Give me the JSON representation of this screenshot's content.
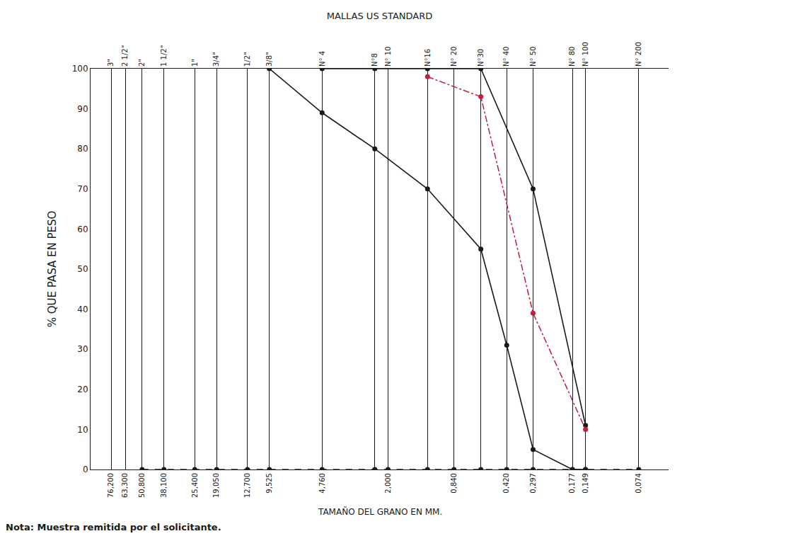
{
  "chart_data": {
    "type": "line",
    "title": "MALLAS US STANDARD",
    "x_label": "TAMAÑO DEL GRANO EN MM.",
    "y_label": "% QUE PASA EN PESO",
    "note": "Nota: Muestra remitida por el solicitante.",
    "log": "x",
    "grid": true,
    "xlim": [
      100,
      0.05
    ],
    "xticks": [
      {
        "value": 76.2,
        "label": "76,200"
      },
      {
        "value": 63.3,
        "label": "63,300"
      },
      {
        "value": 50.8,
        "label": "50,800"
      },
      {
        "value": 38.1,
        "label": "38,100"
      },
      {
        "value": 25.4,
        "label": "25,400"
      },
      {
        "value": 19.05,
        "label": "19,050"
      },
      {
        "value": 12.7,
        "label": "12,700"
      },
      {
        "value": 9.525,
        "label": "9,525"
      },
      {
        "value": 4.76,
        "label": "4,760"
      },
      {
        "value": 2.0,
        "label": "2,000"
      },
      {
        "value": 0.84,
        "label": "0,840"
      },
      {
        "value": 0.42,
        "label": "0,420"
      },
      {
        "value": 0.297,
        "label": "0,297"
      },
      {
        "value": 0.177,
        "label": "0,177"
      },
      {
        "value": 0.149,
        "label": "0,149"
      },
      {
        "value": 0.074,
        "label": "0,074"
      }
    ],
    "sieves": [
      {
        "value": 76.2,
        "label": "3\""
      },
      {
        "value": 63.3,
        "label": "2 1/2\""
      },
      {
        "value": 50.8,
        "label": "2\""
      },
      {
        "value": 38.1,
        "label": "1 1/2\""
      },
      {
        "value": 25.4,
        "label": "1\""
      },
      {
        "value": 19.05,
        "label": "3/4\""
      },
      {
        "value": 12.7,
        "label": "1/2\""
      },
      {
        "value": 9.525,
        "label": "3/8\""
      },
      {
        "value": 4.76,
        "label": "N° 4"
      },
      {
        "value": 2.38,
        "label": "N°8"
      },
      {
        "value": 2.0,
        "label": "N° 10"
      },
      {
        "value": 1.19,
        "label": "N°16"
      },
      {
        "value": 0.84,
        "label": "N° 20"
      },
      {
        "value": 0.59,
        "label": "N°30"
      },
      {
        "value": 0.42,
        "label": "N° 40"
      },
      {
        "value": 0.297,
        "label": "N° 50"
      },
      {
        "value": 0.177,
        "label": "N° 80"
      },
      {
        "value": 0.149,
        "label": "N° 100"
      },
      {
        "value": 0.074,
        "label": "N° 200"
      }
    ],
    "ylim": [
      0,
      100
    ],
    "yticks": [
      0,
      10,
      20,
      30,
      40,
      50,
      60,
      70,
      80,
      90,
      100
    ],
    "series": [
      {
        "color": "#1a1a1a",
        "line_style": "solid",
        "marker": "circle",
        "x": [
          9.525,
          4.76,
          2.38,
          1.19,
          0.59,
          0.42,
          0.297,
          0.177,
          0.149
        ],
        "values": [
          100,
          89,
          80,
          70,
          55,
          31,
          5,
          0,
          0
        ]
      },
      {
        "color": "#1a1a1a",
        "line_style": "solid",
        "marker": "circle",
        "x": [
          4.76,
          2.38,
          1.19,
          0.59,
          0.297,
          0.149
        ],
        "values": [
          100,
          100,
          100,
          100,
          70,
          11
        ]
      },
      {
        "color": "#c0203a",
        "line_style": "dashdot",
        "marker": "circle",
        "x": [
          1.19,
          0.59,
          0.297,
          0.149
        ],
        "values": [
          98,
          93,
          39,
          10
        ]
      },
      {
        "color": "#1a1a1a",
        "line_style": "dash",
        "marker": "circle",
        "x": [
          50.8,
          38.1,
          25.4,
          19.05,
          12.7,
          9.525,
          4.76,
          2.38,
          2.0,
          1.19,
          0.84,
          0.59,
          0.42,
          0.297,
          0.177,
          0.149,
          0.074
        ],
        "values": [
          0,
          0,
          0,
          0,
          0,
          0,
          0,
          0,
          0,
          0,
          0,
          0,
          0,
          0,
          0,
          0,
          0
        ]
      }
    ]
  }
}
